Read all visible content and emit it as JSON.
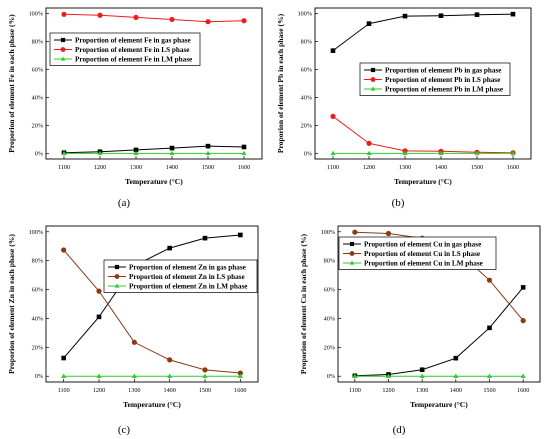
{
  "figure": {
    "panels": [
      {
        "panel_label": "(a)",
        "xlabel": "Temperature (°C)",
        "ylabel": "Proporion of element Fe in each phase (%)"
      },
      {
        "panel_label": "(b)",
        "xlabel": "Temperature (°C)",
        "ylabel": "Proporion of element Pb in each phase (%)"
      },
      {
        "panel_label": "(c)",
        "xlabel": "Temperature (°C)",
        "ylabel": "Proporion of element Zn in each phase (%)"
      },
      {
        "panel_label": "(d)",
        "xlabel": "Temperature (°C)",
        "ylabel": "Proporion of element Cu in each phase (%)"
      }
    ]
  },
  "chart_data": [
    {
      "type": "line",
      "panel_label": "(a)",
      "x": [
        1100,
        1200,
        1300,
        1400,
        1500,
        1600
      ],
      "x_ticks": [
        "1100",
        "1200",
        "1300",
        "1400",
        "1500",
        "1600"
      ],
      "y_ticks": [
        "0%",
        "20%",
        "40%",
        "60%",
        "80%",
        "100%"
      ],
      "ylim": [
        -4,
        104
      ],
      "xlabel": "Temperature (°C)",
      "ylabel": "Proporion of element Fe in each phase (%)",
      "legend_position": "upper-left",
      "grid": false,
      "series": [
        {
          "name": "Proportion of element Fe in gas phase",
          "values": [
            0.5,
            1.2,
            2.5,
            3.8,
            5.2,
            4.6
          ],
          "color": "#000000",
          "marker": "square"
        },
        {
          "name": "Proportion of element Fe in LS phase",
          "values": [
            99.5,
            98.8,
            97.3,
            95.8,
            94.2,
            94.9
          ],
          "color": "#ee1c1c",
          "marker": "circle"
        },
        {
          "name": "Proportion of element Fe in LM phase",
          "values": [
            0,
            0,
            0,
            0,
            0,
            0
          ],
          "color": "#2ecc2e",
          "marker": "triangle"
        }
      ]
    },
    {
      "type": "line",
      "panel_label": "(b)",
      "x": [
        1100,
        1200,
        1300,
        1400,
        1500,
        1600
      ],
      "x_ticks": [
        "1100",
        "1200",
        "1300",
        "1400",
        "1500",
        "1600"
      ],
      "y_ticks": [
        "0%",
        "20%",
        "40%",
        "60%",
        "80%",
        "100%"
      ],
      "ylim": [
        -4,
        104
      ],
      "xlabel": "Temperature (°C)",
      "ylabel": "Proporion of element Pb in each phase (%)",
      "legend_position": "center-right",
      "grid": false,
      "series": [
        {
          "name": "Proportion of element Pb in gas phase",
          "values": [
            73.5,
            92.8,
            98.2,
            98.5,
            99.2,
            99.6
          ],
          "color": "#000000",
          "marker": "square"
        },
        {
          "name": "Proportion of element Pb in LS phase",
          "values": [
            26.5,
            7.2,
            1.8,
            1.5,
            0.8,
            0.4
          ],
          "color": "#ee1c1c",
          "marker": "circle"
        },
        {
          "name": "Proportion of element Pb in LM phase",
          "values": [
            0,
            0,
            0,
            0,
            0,
            0
          ],
          "color": "#2ecc2e",
          "marker": "triangle"
        }
      ]
    },
    {
      "type": "line",
      "panel_label": "(c)",
      "x": [
        1100,
        1200,
        1300,
        1400,
        1500,
        1600
      ],
      "x_ticks": [
        "1100",
        "1200",
        "1300",
        "1400",
        "1500",
        "1600"
      ],
      "y_ticks": [
        "0%",
        "20%",
        "40%",
        "60%",
        "80%",
        "100%"
      ],
      "ylim": [
        -4,
        104
      ],
      "xlabel": "Temperature (°C)",
      "ylabel": "Proportion of element Zn in each phase (%)",
      "legend_position": "center-right",
      "grid": false,
      "series": [
        {
          "name": "Proportion of element Zn in gas phase",
          "values": [
            12.6,
            41.1,
            76.5,
            88.7,
            95.6,
            97.8
          ],
          "color": "#000000",
          "marker": "square"
        },
        {
          "name": "Proportion of element Zn in LS phase",
          "values": [
            87.4,
            58.9,
            23.5,
            11.3,
            4.4,
            2.2
          ],
          "color": "#8b3a10",
          "marker": "circle"
        },
        {
          "name": "Proportion of element Zn in LM phase",
          "values": [
            0,
            0,
            0,
            0,
            0,
            0
          ],
          "color": "#2ecc2e",
          "marker": "triangle"
        }
      ]
    },
    {
      "type": "line",
      "panel_label": "(d)",
      "x": [
        1100,
        1200,
        1300,
        1400,
        1500,
        1600
      ],
      "x_ticks": [
        "1100",
        "1200",
        "1300",
        "1400",
        "1500",
        "1600"
      ],
      "y_ticks": [
        "0%",
        "20%",
        "40%",
        "60%",
        "80%",
        "100%"
      ],
      "ylim": [
        -4,
        104
      ],
      "xlabel": "Temperature (°C)",
      "ylabel": "Proportion of element Cu in each phase (%)",
      "legend_position": "upper-left",
      "grid": false,
      "series": [
        {
          "name": "Proportion of element Cu in gas phase",
          "values": [
            0.3,
            1.2,
            4.5,
            12.5,
            33.5,
            61.5
          ],
          "color": "#000000",
          "marker": "square"
        },
        {
          "name": "Proportion of element Cu in LS phase",
          "values": [
            99.7,
            98.8,
            95.5,
            87.5,
            66.5,
            38.5
          ],
          "color": "#8b3a10",
          "marker": "circle"
        },
        {
          "name": "Proportion of element Cu in LM phase",
          "values": [
            0,
            0,
            0,
            0,
            0,
            0
          ],
          "color": "#2ecc2e",
          "marker": "triangle"
        }
      ]
    }
  ]
}
